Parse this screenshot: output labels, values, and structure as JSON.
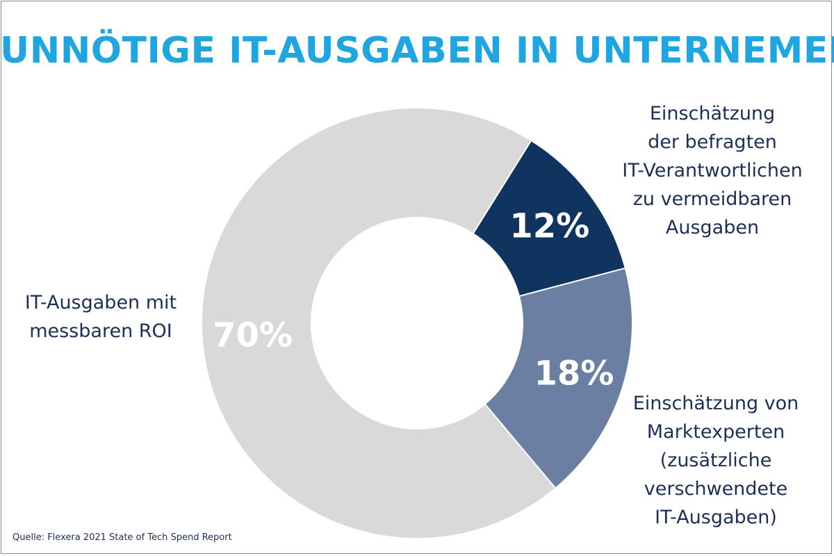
{
  "title": "UNNÖTIGE IT-AUSGABEN IN UNTERNEMEN",
  "source": "Quelle: Flexera 2021 State of Tech Spend Report",
  "annotations": {
    "left": [
      "IT-Ausgaben mit",
      "messbaren ROI"
    ],
    "top": [
      "Einschätzung",
      "der befragten",
      "IT-Verantwortlichen",
      "zu vermeidbaren",
      "Ausgaben"
    ],
    "bottom": [
      "Einschätzung von",
      "Marktexperten",
      "(zusätzliche",
      "verschwendete",
      "IT-Ausgaben)"
    ]
  },
  "chart_data": {
    "type": "pie",
    "variant": "donut",
    "title": "UNNÖTIGE IT-AUSGABEN IN UNTERNEMEN",
    "slices": [
      {
        "name": "Einschätzung der befragten IT-Verantwortlichen zu vermeidbaren Ausgaben",
        "value": 12,
        "label": "12%",
        "color": "#0f3460"
      },
      {
        "name": "Einschätzung von Marktexperten (zusätzliche verschwendete IT-Ausgaben)",
        "value": 18,
        "label": "18%",
        "color": "#6b7fa3"
      },
      {
        "name": "IT-Ausgaben mit messbaren ROI",
        "value": 70,
        "label": "70%",
        "color": "#d9d9d9"
      }
    ],
    "start_angle_deg": 32,
    "direction": "clockwise"
  }
}
